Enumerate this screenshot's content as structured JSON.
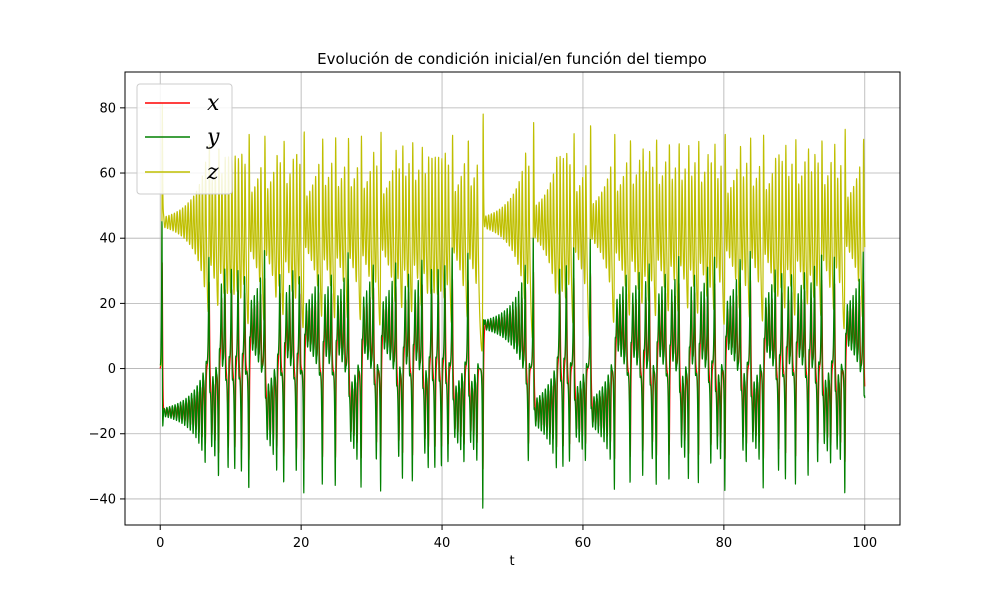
{
  "chart_data": {
    "type": "line",
    "title": "Evolución de condición inicial/en función del tiempo",
    "xlabel": "t",
    "ylabel": "",
    "xlim": [
      -5,
      105
    ],
    "ylim": [
      -48,
      91
    ],
    "xticks": [
      0,
      20,
      40,
      60,
      80,
      100
    ],
    "yticks": [
      -40,
      -20,
      0,
      20,
      40,
      60,
      80
    ],
    "xtick_labels": [
      "0",
      "20",
      "40",
      "60",
      "80",
      "100"
    ],
    "ytick_labels": [
      "−40",
      "−20",
      "0",
      "20",
      "40",
      "60",
      "80"
    ],
    "grid": true,
    "legend_position": "top-left",
    "t_range": [
      0,
      100
    ],
    "series": [
      {
        "name": "x",
        "color": "#ff0000",
        "description": "oscillates roughly between -20 and 20 (Lorenz-like)"
      },
      {
        "name": "y",
        "color": "#008000",
        "description": "oscillates roughly between -41 and 28"
      },
      {
        "name": "z",
        "color": "#bfbf00",
        "description": "oscillates roughly between 10 and 78"
      }
    ]
  }
}
